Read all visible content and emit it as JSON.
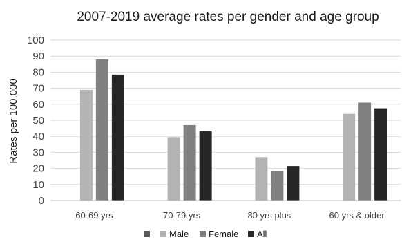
{
  "chart_data": {
    "type": "bar",
    "title": "2007-2019 average rates per gender and age group",
    "ylabel": "Rates per 100,000",
    "xlabel": "",
    "ylim": [
      0,
      100
    ],
    "yticks": [
      0,
      10,
      20,
      30,
      40,
      50,
      60,
      70,
      80,
      90,
      100
    ],
    "grid": true,
    "legend_position": "bottom",
    "categories": [
      "60-69 yrs",
      "70-79 yrs",
      "80 yrs plus",
      "60 yrs & older"
    ],
    "series": [
      {
        "name": "",
        "color": "#595959",
        "values": [
          0,
          0,
          0,
          0
        ]
      },
      {
        "name": "Male",
        "color": "#b3b3b3",
        "values": [
          69,
          39.5,
          27,
          54
        ]
      },
      {
        "name": "Female",
        "color": "#808080",
        "values": [
          88,
          47,
          18.5,
          61
        ]
      },
      {
        "name": "All",
        "color": "#262626",
        "values": [
          78.5,
          43.5,
          21.5,
          57.5
        ]
      }
    ]
  }
}
